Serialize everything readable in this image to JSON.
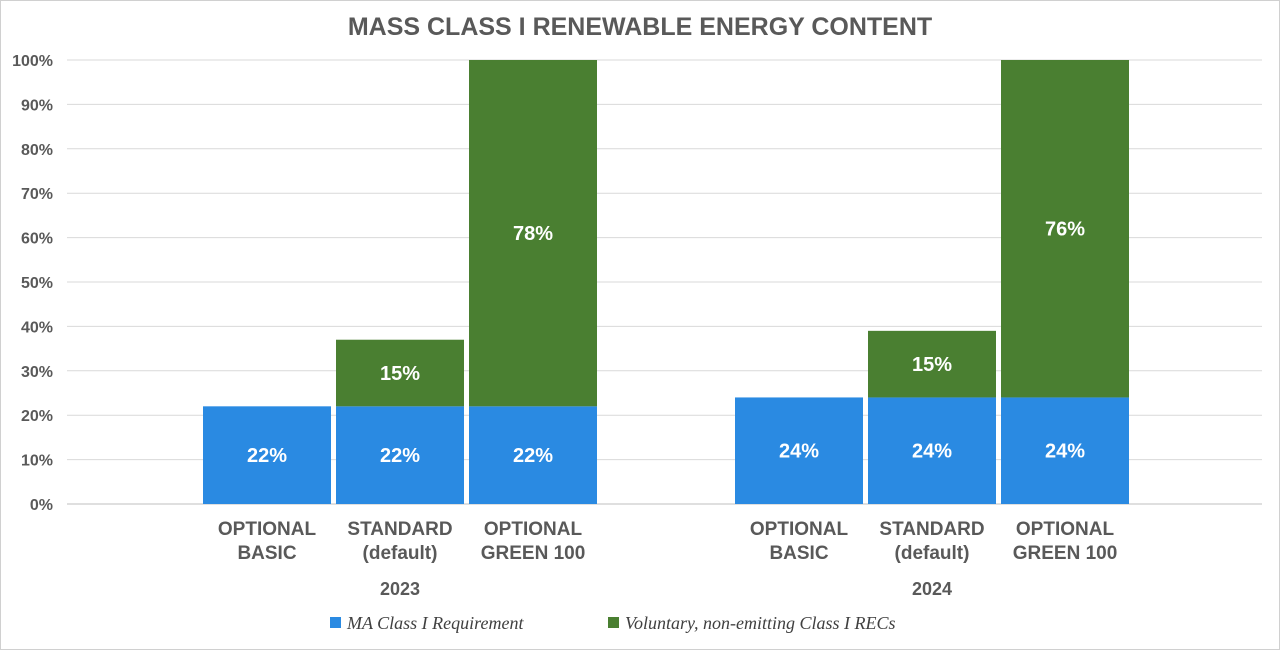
{
  "chart_data": {
    "type": "bar",
    "stacked": true,
    "title": "MASS CLASS I RENEWABLE ENERGY CONTENT",
    "xlabel": "",
    "ylabel": "",
    "ylim": [
      0,
      100
    ],
    "y_ticks": [
      "0%",
      "10%",
      "20%",
      "30%",
      "40%",
      "50%",
      "60%",
      "70%",
      "80%",
      "90%",
      "100%"
    ],
    "grid": true,
    "legend_position": "bottom",
    "groups": [
      {
        "label": "2023",
        "categories": [
          {
            "lines": [
              "OPTIONAL",
              "BASIC"
            ]
          },
          {
            "lines": [
              "STANDARD",
              "(default)"
            ]
          },
          {
            "lines": [
              "OPTIONAL",
              "GREEN 100"
            ]
          }
        ]
      },
      {
        "label": "2024",
        "categories": [
          {
            "lines": [
              "OPTIONAL",
              "BASIC"
            ]
          },
          {
            "lines": [
              "STANDARD",
              "(default)"
            ]
          },
          {
            "lines": [
              "OPTIONAL",
              "GREEN 100"
            ]
          }
        ]
      }
    ],
    "series": [
      {
        "name": "MA Class I Requirement",
        "color": "#2a8ae2",
        "values": [
          22,
          22,
          22,
          24,
          24,
          24
        ],
        "labels": [
          "22%",
          "22%",
          "22%",
          "24%",
          "24%",
          "24%"
        ]
      },
      {
        "name": "Voluntary, non-emitting Class I RECs",
        "color": "#4a7f31",
        "values": [
          0,
          15,
          78,
          0,
          15,
          76
        ],
        "labels": [
          "",
          "15%",
          "78%",
          "",
          "15%",
          "76%"
        ]
      }
    ]
  }
}
